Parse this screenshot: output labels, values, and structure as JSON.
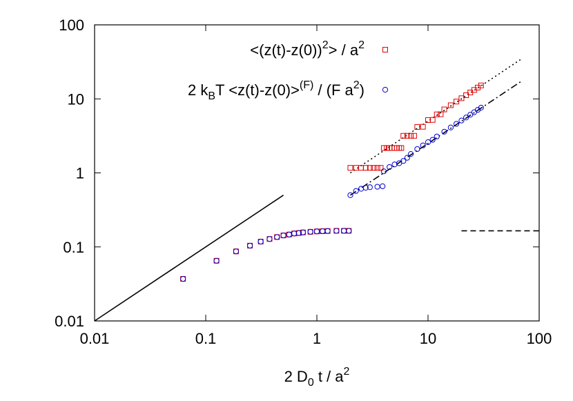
{
  "chart_data": {
    "type": "scatter",
    "log_x": true,
    "log_y": true,
    "xlim": [
      0.01,
      100
    ],
    "ylim": [
      0.01,
      100
    ],
    "xticks": [
      0.01,
      0.1,
      1,
      10,
      100
    ],
    "yticks": [
      0.01,
      0.1,
      1,
      10,
      100
    ],
    "xlabel": [
      {
        "text": "2 D"
      },
      {
        "sub": "0"
      },
      {
        "text": " t / a"
      },
      {
        "sup": "2"
      }
    ],
    "legend": "top-right",
    "series": [
      {
        "name": [
          {
            "text": "<(z(t)-z(0))"
          },
          {
            "sup": "2"
          },
          {
            "text": "> / a"
          },
          {
            "sup": "2"
          }
        ],
        "color": "#e00000",
        "marker": "square",
        "x": [
          0.0625,
          0.125,
          0.1875,
          0.25,
          0.3125,
          0.375,
          0.4375,
          0.5,
          0.5625,
          0.625,
          0.6875,
          0.75,
          0.875,
          1,
          1.125,
          1.25,
          1.5,
          1.75,
          1.9375,
          2,
          2.25,
          2.5,
          2.75,
          3,
          3.25,
          3.5,
          3.75,
          4,
          4.25,
          4.5,
          4.75,
          5,
          5.25,
          5.5,
          5.75,
          6,
          6.5,
          7,
          7.5,
          8,
          9,
          10,
          11,
          12,
          13,
          14,
          16,
          18,
          20,
          22,
          24,
          26,
          28,
          30
        ],
        "values": [
          0.037,
          0.065,
          0.087,
          0.104,
          0.118,
          0.128,
          0.136,
          0.143,
          0.147,
          0.152,
          0.154,
          0.157,
          0.16,
          0.162,
          0.163,
          0.164,
          0.165,
          0.165,
          0.165,
          1.17,
          1.17,
          1.17,
          1.17,
          1.17,
          1.17,
          1.17,
          1.17,
          2.17,
          2.17,
          2.17,
          2.17,
          2.17,
          2.17,
          2.17,
          2.17,
          3.17,
          3.17,
          3.17,
          3.17,
          4.17,
          4.2,
          5.17,
          5.2,
          6.17,
          6.2,
          7.2,
          8.2,
          9.2,
          10.2,
          11.2,
          12.2,
          13.2,
          14.2,
          15.2
        ]
      },
      {
        "name": [
          {
            "text": "2 k"
          },
          {
            "sub": "B"
          },
          {
            "text": "T  <z(t)-z(0)>"
          },
          {
            "sup": "(F)"
          },
          {
            "text": " / (F a"
          },
          {
            "sup": "2"
          },
          {
            "text": ")"
          }
        ],
        "color": "#0000d0",
        "marker": "circle",
        "x": [
          0.0625,
          0.125,
          0.1875,
          0.25,
          0.3125,
          0.375,
          0.4375,
          0.5,
          0.5625,
          0.625,
          0.6875,
          0.75,
          0.875,
          1,
          1.125,
          1.25,
          1.5,
          1.75,
          1.9375,
          2,
          2.25,
          2.5,
          2.75,
          3,
          3.5,
          3.9,
          4,
          4.5,
          5,
          5.5,
          6,
          6.5,
          7,
          8,
          9,
          10,
          11,
          12,
          14,
          16,
          18,
          20,
          22,
          24,
          26,
          28,
          30
        ],
        "values": [
          0.037,
          0.065,
          0.087,
          0.104,
          0.118,
          0.128,
          0.136,
          0.143,
          0.147,
          0.152,
          0.154,
          0.157,
          0.16,
          0.162,
          0.163,
          0.164,
          0.165,
          0.165,
          0.165,
          0.5,
          0.57,
          0.61,
          0.63,
          0.64,
          0.65,
          0.66,
          1.05,
          1.2,
          1.3,
          1.35,
          1.45,
          1.6,
          1.8,
          2.1,
          2.35,
          2.6,
          2.8,
          3.1,
          3.6,
          4.1,
          4.6,
          5.1,
          5.6,
          6.1,
          6.6,
          7.1,
          7.6
        ]
      }
    ],
    "lines": [
      {
        "x": [
          0.01,
          0.5
        ],
        "values": [
          0.01,
          0.5
        ],
        "dash": "solid",
        "color": "#000000"
      },
      {
        "x": [
          2,
          70
        ],
        "values": [
          1,
          35
        ],
        "dash": "dotted",
        "color": "#000000"
      },
      {
        "x": [
          2,
          70
        ],
        "values": [
          0.5,
          17.5
        ],
        "dash": "dashdot",
        "color": "#000000"
      },
      {
        "x": [
          20,
          100
        ],
        "values": [
          0.165,
          0.165
        ],
        "dash": "dashed",
        "color": "#000000"
      }
    ]
  }
}
